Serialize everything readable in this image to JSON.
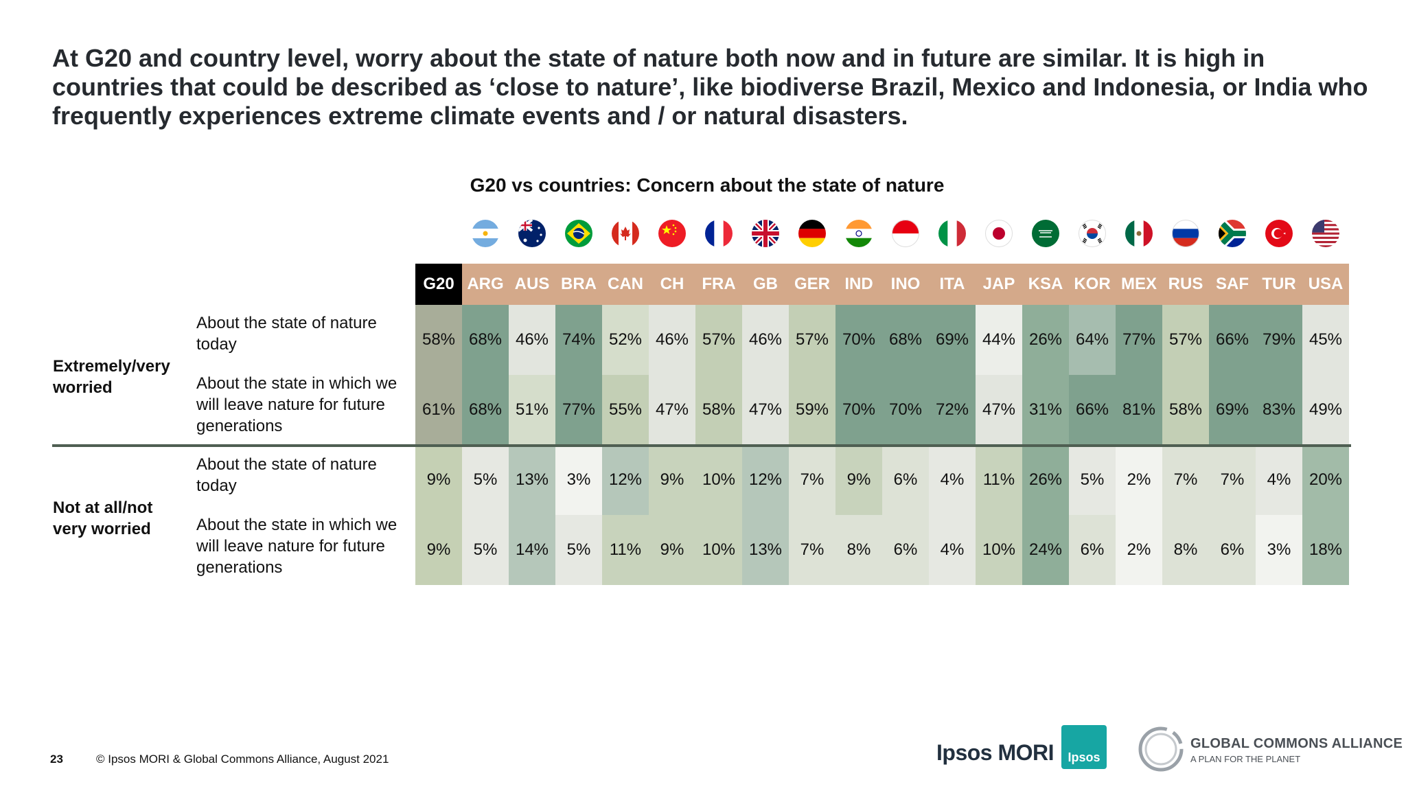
{
  "headline": "At G20 and country level, worry about the state of nature both now and in future are similar. It is high in countries that could be described as ‘close to nature’, like biodiverse Brazil, Mexico and Indonesia, or India who frequently experiences extreme climate events and / or natural disasters.",
  "groups": {
    "worried": "Extremely/very worried",
    "not_worried": "Not at all/not very worried"
  },
  "row_labels": {
    "today": "About the state of nature today",
    "future": "About the state in which we will leave nature for future generations"
  },
  "flag_icons": [
    "argentina-flag-icon",
    "australia-flag-icon",
    "brazil-flag-icon",
    "canada-flag-icon",
    "china-flag-icon",
    "france-flag-icon",
    "uk-flag-icon",
    "germany-flag-icon",
    "india-flag-icon",
    "indonesia-flag-icon",
    "italy-flag-icon",
    "japan-flag-icon",
    "saudi-arabia-flag-icon",
    "korea-flag-icon",
    "mexico-flag-icon",
    "russia-flag-icon",
    "south-africa-flag-icon",
    "turkey-flag-icon",
    "usa-flag-icon"
  ],
  "colors": {
    "header_bg": "#d4a98a",
    "g20_header_bg": "#000000",
    "cell_scale": [
      "#ffffff",
      "#e4e7df",
      "#bcd0b6",
      "#7fa18e"
    ],
    "divider": "#4f5f52"
  },
  "chart_data": {
    "type": "table",
    "title": "G20 vs countries: Concern about the state of nature",
    "columns": [
      "G20",
      "ARG",
      "AUS",
      "BRA",
      "CAN",
      "CH",
      "FRA",
      "GB",
      "GER",
      "IND",
      "INO",
      "ITA",
      "JAP",
      "KSA",
      "KOR",
      "MEX",
      "RUS",
      "SAF",
      "TUR",
      "USA"
    ],
    "rows": [
      {
        "group": "Extremely/very worried",
        "label": "About the state of nature today",
        "values": [
          "58%",
          "68%",
          "46%",
          "74%",
          "52%",
          "46%",
          "57%",
          "46%",
          "57%",
          "70%",
          "68%",
          "69%",
          "44%",
          "26%",
          "64%",
          "77%",
          "57%",
          "66%",
          "79%",
          "45%"
        ]
      },
      {
        "group": "Extremely/very worried",
        "label": "About the state in which we will leave nature for future generations",
        "values": [
          "61%",
          "68%",
          "51%",
          "77%",
          "55%",
          "47%",
          "58%",
          "47%",
          "59%",
          "70%",
          "70%",
          "72%",
          "47%",
          "31%",
          "66%",
          "81%",
          "58%",
          "69%",
          "83%",
          "49%"
        ]
      },
      {
        "group": "Not at all/not very worried",
        "label": "About the state of nature today",
        "values": [
          "9%",
          "5%",
          "13%",
          "3%",
          "12%",
          "9%",
          "10%",
          "12%",
          "7%",
          "9%",
          "6%",
          "4%",
          "11%",
          "26%",
          "5%",
          "2%",
          "7%",
          "7%",
          "4%",
          "20%"
        ]
      },
      {
        "group": "Not at all/not very worried",
        "label": "About the state in which we will leave nature for future generations",
        "values": [
          "9%",
          "5%",
          "14%",
          "5%",
          "11%",
          "9%",
          "10%",
          "13%",
          "7%",
          "8%",
          "6%",
          "4%",
          "10%",
          "24%",
          "6%",
          "2%",
          "8%",
          "6%",
          "3%",
          "18%"
        ]
      }
    ]
  },
  "footer": {
    "page_number": "23",
    "copyright": "© Ipsos MORI & Global Commons Alliance, August 2021",
    "ipsos_wordmark": "Ipsos MORI",
    "ipsos_box": "Ipsos",
    "gca_name": "GLOBAL COMMONS ALLIANCE",
    "gca_tagline": "A PLAN FOR THE PLANET"
  }
}
